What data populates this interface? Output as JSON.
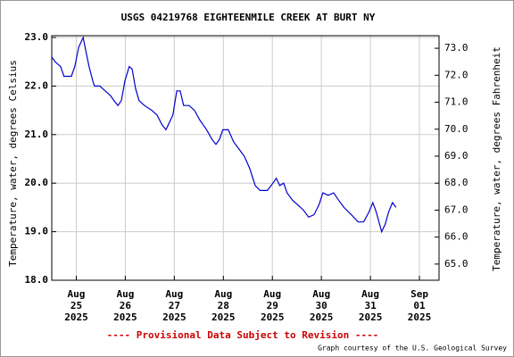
{
  "chart_data": {
    "type": "line",
    "title": "USGS 04219768 EIGHTEENMILE CREEK AT BURT NY",
    "ylabel": "Temperature, water, degrees Celsius",
    "y2label": "Temperature, water, degrees Fahrenheit",
    "note": "---- Provisional Data Subject to Revision ----",
    "credit": "Graph courtesy of the U.S. Geological Survey",
    "xlim": [
      24.5,
      32.4
    ],
    "xticks": [
      {
        "value": 25,
        "label": "Aug 25 2025"
      },
      {
        "value": 26,
        "label": "Aug 26 2025"
      },
      {
        "value": 27,
        "label": "Aug 27 2025"
      },
      {
        "value": 28,
        "label": "Aug 28 2025"
      },
      {
        "value": 29,
        "label": "Aug 29 2025"
      },
      {
        "value": 30,
        "label": "Aug 30 2025"
      },
      {
        "value": 31,
        "label": "Aug 31 2025"
      },
      {
        "value": 32,
        "label": "Sep 01 2025"
      }
    ],
    "ylim": [
      18,
      23
    ],
    "yticks": [
      {
        "value": 18,
        "label": "18.0"
      },
      {
        "value": 19,
        "label": "19.0"
      },
      {
        "value": 20,
        "label": "20.0"
      },
      {
        "value": 21,
        "label": "21.0"
      },
      {
        "value": 22,
        "label": "22.0"
      },
      {
        "value": 23,
        "label": "23.0"
      }
    ],
    "y2lim": [
      64.4,
      73.4
    ],
    "y2ticks": [
      {
        "value": 65,
        "label": "65.0"
      },
      {
        "value": 66,
        "label": "66.0"
      },
      {
        "value": 67,
        "label": "67.0"
      },
      {
        "value": 68,
        "label": "68.0"
      },
      {
        "value": 69,
        "label": "69.0"
      },
      {
        "value": 70,
        "label": "70.0"
      },
      {
        "value": 71,
        "label": "71.0"
      },
      {
        "value": 72,
        "label": "72.0"
      },
      {
        "value": 73,
        "label": "73.0"
      }
    ],
    "grid": true,
    "series": [
      {
        "color": "#0000cc",
        "x": [
          24.5,
          24.57,
          24.68,
          24.75,
          24.9,
          24.97,
          25.05,
          25.14,
          25.19,
          25.26,
          25.34,
          25.37,
          25.48,
          25.59,
          25.7,
          25.77,
          25.85,
          25.92,
          25.99,
          26.08,
          26.14,
          26.21,
          26.28,
          26.39,
          26.54,
          26.65,
          26.75,
          26.83,
          26.9,
          26.97,
          27.05,
          27.12,
          27.19,
          27.3,
          27.41,
          27.52,
          27.66,
          27.77,
          27.85,
          27.92,
          27.99,
          28.1,
          28.21,
          28.32,
          28.43,
          28.54,
          28.65,
          28.75,
          28.9,
          29.01,
          29.08,
          29.15,
          29.23,
          29.3,
          29.41,
          29.52,
          29.63,
          29.74,
          29.85,
          29.95,
          30.03,
          30.14,
          30.25,
          30.35,
          30.46,
          30.61,
          30.75,
          30.86,
          30.97,
          31.05,
          31.12,
          31.23,
          31.3,
          31.37,
          31.45,
          31.52
        ],
        "values": [
          22.6,
          22.5,
          22.4,
          22.2,
          22.2,
          22.4,
          22.8,
          23.0,
          22.75,
          22.4,
          22.1,
          22.0,
          22.0,
          21.9,
          21.8,
          21.7,
          21.6,
          21.7,
          22.1,
          22.4,
          22.35,
          21.95,
          21.7,
          21.6,
          21.5,
          21.4,
          21.2,
          21.1,
          21.25,
          21.4,
          21.9,
          21.9,
          21.6,
          21.6,
          21.5,
          21.3,
          21.1,
          20.9,
          20.8,
          20.9,
          21.1,
          21.1,
          20.85,
          20.7,
          20.55,
          20.3,
          19.95,
          19.85,
          19.85,
          20.0,
          20.1,
          19.95,
          20.0,
          19.8,
          19.65,
          19.55,
          19.45,
          19.3,
          19.35,
          19.55,
          19.8,
          19.75,
          19.8,
          19.65,
          19.5,
          19.35,
          19.2,
          19.2,
          19.4,
          19.6,
          19.4,
          19.0,
          19.15,
          19.4,
          19.6,
          19.5
        ]
      }
    ]
  }
}
